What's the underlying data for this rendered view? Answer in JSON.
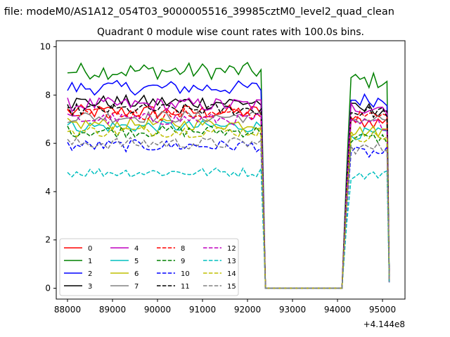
{
  "figure": {
    "suptitle": "n file: modeM0/AS1A12_054T03_9000005516_39985cztM0_level2_quad_clean",
    "offset_label": "+4.144e8"
  },
  "chart_data": {
    "type": "line",
    "title": "Quadrant 0 module wise count rates with 100.0s bins.",
    "xlabel": "",
    "ylabel": "",
    "x_offset": 414400000,
    "xlim": [
      87750,
      95500
    ],
    "ylim": [
      -0.45,
      10.25
    ],
    "xticks": [
      88000,
      89000,
      90000,
      91000,
      92000,
      93000,
      94000,
      95000
    ],
    "yticks": [
      0,
      2,
      4,
      6,
      8,
      10
    ],
    "grid": false,
    "legend": {
      "placement": "lower-left",
      "columns": 4
    },
    "series": [
      {
        "name": "0",
        "color": "#ff0000",
        "dash": "solid",
        "level": 7.3,
        "tail": 6.9,
        "jitter": 0.3
      },
      {
        "name": "1",
        "color": "#008000",
        "dash": "solid",
        "level": 9.0,
        "tail": 8.6,
        "jitter": 0.35
      },
      {
        "name": "2",
        "color": "#0000ff",
        "dash": "solid",
        "level": 8.3,
        "tail": 7.8,
        "jitter": 0.3
      },
      {
        "name": "3",
        "color": "#000000",
        "dash": "solid",
        "level": 7.7,
        "tail": 7.4,
        "jitter": 0.3
      },
      {
        "name": "4",
        "color": "#bf00bf",
        "dash": "solid",
        "level": 7.6,
        "tail": 7.5,
        "jitter": 0.3
      },
      {
        "name": "5",
        "color": "#00bfbf",
        "dash": "solid",
        "level": 6.7,
        "tail": 6.4,
        "jitter": 0.25
      },
      {
        "name": "6",
        "color": "#bfbf00",
        "dash": "solid",
        "level": 6.8,
        "tail": 6.5,
        "jitter": 0.25
      },
      {
        "name": "7",
        "color": "#808080",
        "dash": "solid",
        "level": 7.1,
        "tail": 7.0,
        "jitter": 0.25
      },
      {
        "name": "8",
        "color": "#ff0000",
        "dash": "dashed",
        "level": 7.2,
        "tail": 7.1,
        "jitter": 0.25
      },
      {
        "name": "9",
        "color": "#008000",
        "dash": "dashed",
        "level": 6.5,
        "tail": 6.2,
        "jitter": 0.25
      },
      {
        "name": "10",
        "color": "#0000ff",
        "dash": "dashed",
        "level": 5.9,
        "tail": 5.6,
        "jitter": 0.25
      },
      {
        "name": "11",
        "color": "#000000",
        "dash": "dashed",
        "level": 7.4,
        "tail": 7.3,
        "jitter": 0.25
      },
      {
        "name": "12",
        "color": "#bf00bf",
        "dash": "dashed",
        "level": 7.0,
        "tail": 6.8,
        "jitter": 0.25
      },
      {
        "name": "13",
        "color": "#00bfbf",
        "dash": "dashed",
        "level": 4.8,
        "tail": 4.7,
        "jitter": 0.2
      },
      {
        "name": "14",
        "color": "#bfbf00",
        "dash": "dashed",
        "level": 6.5,
        "tail": 6.3,
        "jitter": 0.25
      },
      {
        "name": "15",
        "color": "#808080",
        "dash": "dashed",
        "level": 6.0,
        "tail": 5.8,
        "jitter": 0.25
      }
    ],
    "segments": {
      "active1": [
        88000,
        92300
      ],
      "off": [
        92400,
        94100
      ],
      "active2": [
        94200,
        95100
      ],
      "end": 95150,
      "bin": 100
    }
  }
}
